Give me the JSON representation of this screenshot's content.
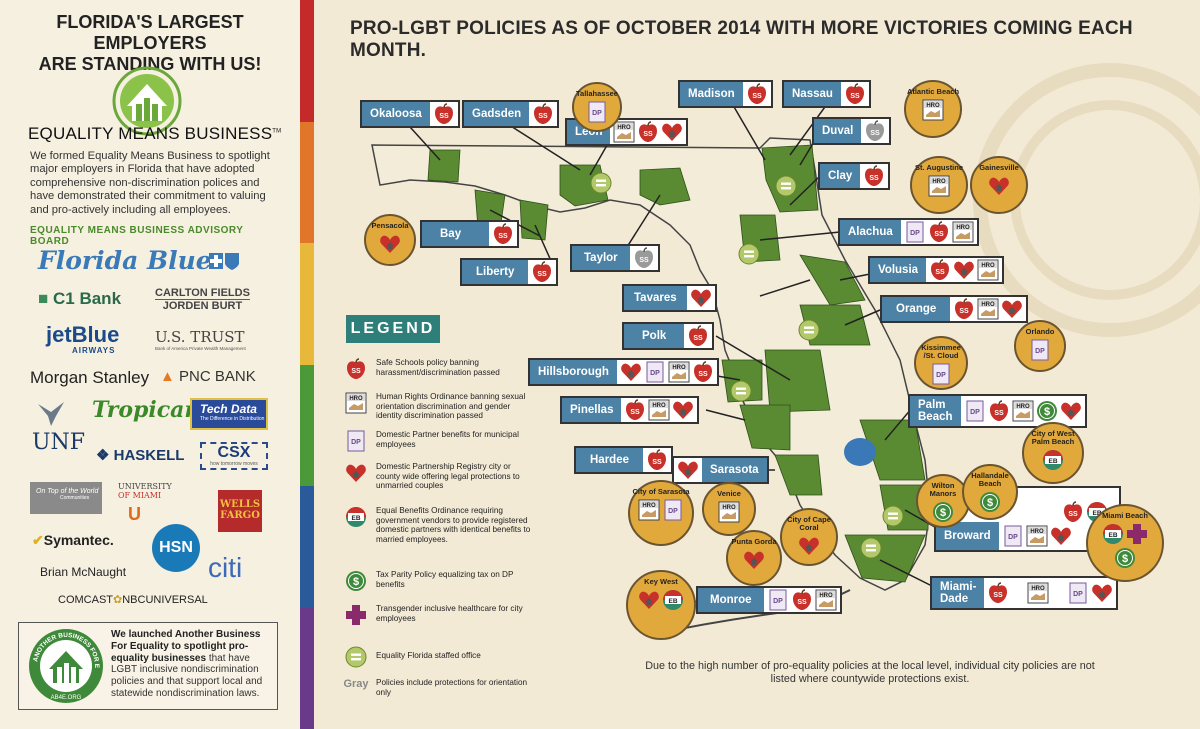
{
  "left_panel": {
    "headline_line1": "FLORIDA'S LARGEST EMPLOYERS",
    "headline_line2": "ARE STANDING WITH US!",
    "emb_title": "EQUALITY MEANS BUSINESS",
    "emb_tm": "TM",
    "emb_description": "We formed Equality Means Business to spotlight major employers in Florida that have adopted comprehensive non-discrimination polices and have demonstrated their commitment to valuing and pro-actively including all employees.",
    "board_title": "EQUALITY MEANS BUSINESS ADVISORY BOARD",
    "sponsors": {
      "florida_blue": "Florida Blue",
      "c1_bank": "C1 Bank",
      "carlton_fields_1": "CARLTON FIELDS",
      "carlton_fields_2": "JORDEN BURT",
      "jetblue": "jetBlue",
      "jetblue_sub": "AIRWAYS",
      "us_trust": "U.S. TRUST",
      "us_trust_sub": "Bank of America Private Wealth Management",
      "morgan_stanley": "Morgan Stanley",
      "pnc": "PNC BANK",
      "unf": "UNF",
      "tropicana": "Tropicana",
      "tech_data": "Tech Data",
      "tech_data_sub": "The Difference in Distribution",
      "haskell": "HASKELL",
      "csx": "CSX",
      "csx_sub": "how tomorrow moves",
      "on_top": "On Top of the World",
      "on_top_sub": "Communities",
      "univ_miami_1": "UNIVERSITY",
      "univ_miami_2": "OF MIAMI",
      "wells_fargo_1": "WELLS",
      "wells_fargo_2": "FARGO",
      "symantec": "Symantec.",
      "hsn": "HSN",
      "brian": "Brian McNaught",
      "citi": "citi",
      "comcast": "COMCAST",
      "nbcu": "NBCUNIVERSAL"
    },
    "ab4e_bold": "We launched Another Business For Equality to spotlight pro-equality businesses",
    "ab4e_rest": " that have LGBT inclusive nondiscrimination policies and that support local and statewide nondiscrimination laws.",
    "ab4e_logo_arc": "ANOTHER BUSINESS FOR EQUALITY",
    "ab4e_logo_url": "AB4E.ORG"
  },
  "main_title": "PRO-LGBT POLICIES AS OF OCTOBER 2014 WITH MORE VICTORIES COMING EACH MONTH.",
  "icon_labels": {
    "ss": "SS",
    "hro": "HRO",
    "dp": "DP",
    "eb": "EB"
  },
  "counties": {
    "okaloosa": "Okaloosa",
    "gadsden": "Gadsden",
    "leon": "Leon",
    "madison": "Madison",
    "nassau": "Nassau",
    "duval": "Duval",
    "clay": "Clay",
    "bay": "Bay",
    "liberty": "Liberty",
    "taylor": "Taylor",
    "alachua": "Alachua",
    "volusia": "Volusia",
    "tavares": "Tavares",
    "orange": "Orange",
    "polk": "Polk",
    "hillsborough": "Hillsborough",
    "pinellas": "Pinellas",
    "palm_beach_1": "Palm",
    "palm_beach_2": "Beach",
    "hardee": "Hardee",
    "sarasota": "Sarasota",
    "broward": "Broward",
    "monroe": "Monroe",
    "miami_dade_1": "Miami-",
    "miami_dade_2": "Dade"
  },
  "cities": {
    "tallahassee": "Tallahassee",
    "atlantic_beach": "Atlantic Beach",
    "st_augustine": "St. Augustine",
    "gainesville": "Gainesville",
    "pensacola": "Pensacola",
    "orlando": "Orlando",
    "kissimmee": "Kissimmee /St. Cloud",
    "west_palm": "City of West Palm Beach",
    "city_sarasota": "City of Sarasota",
    "venice": "Venice",
    "cape_coral": "City of Cape Coral",
    "punta_gorda": "Punta Gorda",
    "wilton_manors": "Wilton Manors",
    "hallandale": "Hallandale Beach",
    "miami_beach": "Miami Beach",
    "key_west": "Key West"
  },
  "legend": {
    "title": "LEGEND",
    "items": [
      "Safe Schools policy banning harassment/discrimination passed",
      "Human Rights Ordinance banning sexual orientation discrimination and gender identity discrimination passed",
      "Domestic Partner benefits for municipal employees",
      "Domestic Partnership Registry city or county wide offering legal protections to unmarried couples",
      "Equal Benefits Ordinance requiring government vendors to provide registered domestic partners with identical benefits to married employees.",
      "Tax Parity Policy equalizing tax on DP benefits",
      "Transgender inclusive healthcare for city employees",
      "Equality Florida staffed office",
      "Policies include protections for orientation only"
    ],
    "gray_label": "Gray"
  },
  "footnote": "Due to the high number of pro-equality policies at the local level, individual city policies are not listed where countywide protections exist.",
  "colors": {
    "county_label": "#4c82a5",
    "map_green": "#5a8a32",
    "city_circle": "#e1a93c",
    "legend_bg": "#2e7f79",
    "ss_red": "#c8302a",
    "background": "#f3ead6"
  }
}
